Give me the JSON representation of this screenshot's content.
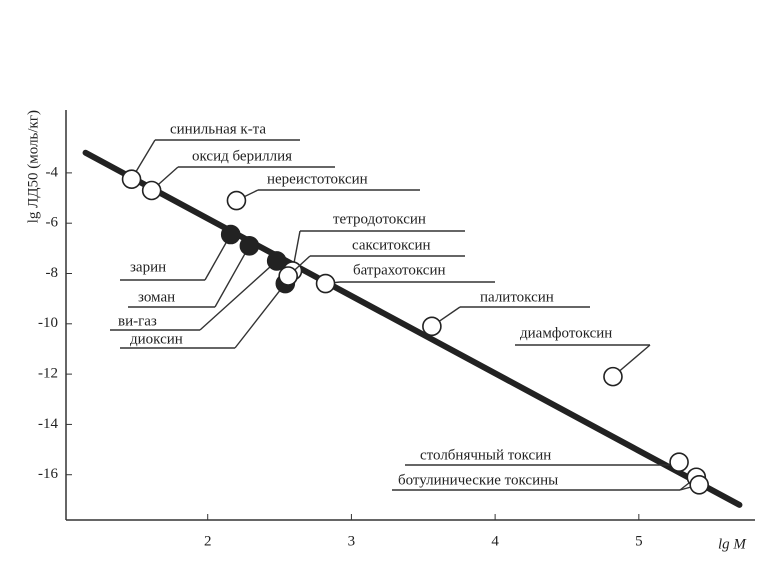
{
  "chart_data": {
    "type": "scatter",
    "xlabel": "lg M",
    "ylabel": "lg ЛД50 (моль/кг)",
    "xlim": [
      1,
      5.8
    ],
    "ylim": [
      -17.8,
      -1.5
    ],
    "xticks": [
      2,
      3,
      4,
      5
    ],
    "yticks": [
      -4,
      -6,
      -8,
      -10,
      -12,
      -14,
      -16
    ],
    "fit_line": {
      "x": [
        1.15,
        5.7
      ],
      "y": [
        -3.2,
        -17.2
      ]
    },
    "points": [
      {
        "label": "синильная к-та",
        "x": 1.47,
        "y": -4.25,
        "filled": false
      },
      {
        "label": "оксид бериллия",
        "x": 1.61,
        "y": -4.7,
        "filled": false
      },
      {
        "label": "нереистотоксин",
        "x": 2.2,
        "y": -5.1,
        "filled": false
      },
      {
        "label": "зарин",
        "x": 2.16,
        "y": -6.45,
        "filled": true
      },
      {
        "label": "зоман",
        "x": 2.29,
        "y": -6.9,
        "filled": true
      },
      {
        "label": "ви-газ",
        "x": 2.48,
        "y": -7.5,
        "filled": true
      },
      {
        "label": "диоксин",
        "x": 2.54,
        "y": -8.4,
        "filled": true
      },
      {
        "label": "тетродотоксин",
        "x": 2.59,
        "y": -7.9,
        "filled": false
      },
      {
        "label": "сакситоксин",
        "x": 2.56,
        "y": -8.1,
        "filled": false
      },
      {
        "label": "батрахотоксин",
        "x": 2.82,
        "y": -8.4,
        "filled": false
      },
      {
        "label": "палитоксин",
        "x": 3.56,
        "y": -10.1,
        "filled": false
      },
      {
        "label": "диамфотоксин",
        "x": 4.82,
        "y": -12.1,
        "filled": false
      },
      {
        "label": "столбнячный токсин",
        "x": 5.28,
        "y": -15.5,
        "filled": false
      },
      {
        "label": "ботулинические токсины",
        "x": 5.4,
        "y": -16.1,
        "filled": false
      },
      {
        "label": null,
        "x": 5.42,
        "y": -16.4,
        "filled": false
      }
    ]
  }
}
